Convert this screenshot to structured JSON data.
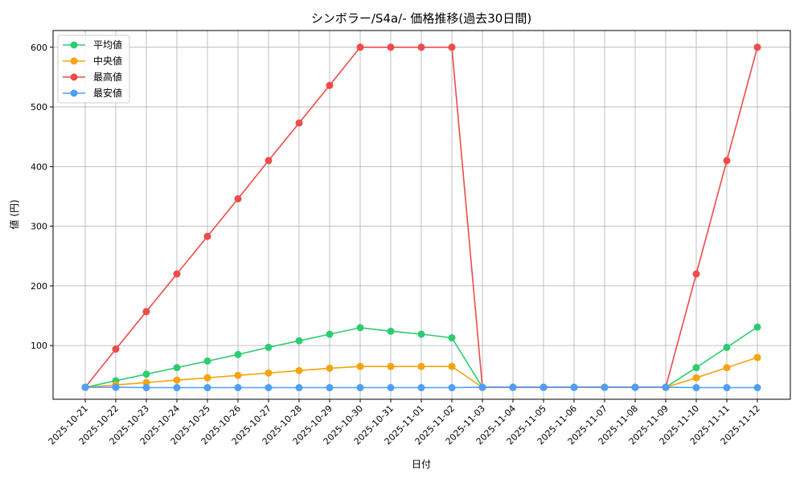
{
  "chart_data": {
    "type": "line",
    "title": "シンボラー/S4a/- 価格推移(過去30日間)",
    "xlabel": "日付",
    "ylabel": "値 (円)",
    "ylim": [
      10,
      628
    ],
    "yticks": [
      100,
      200,
      300,
      400,
      500,
      600
    ],
    "grid": true,
    "legend": "top-left",
    "categories": [
      "2025-10-21",
      "2025-10-22",
      "2025-10-23",
      "2025-10-24",
      "2025-10-25",
      "2025-10-26",
      "2025-10-27",
      "2025-10-28",
      "2025-10-29",
      "2025-10-30",
      "2025-10-31",
      "2025-11-01",
      "2025-11-02",
      "2025-11-03",
      "2025-11-04",
      "2025-11-05",
      "2025-11-06",
      "2025-11-07",
      "2025-11-08",
      "2025-11-09",
      "2025-11-10",
      "2025-11-11",
      "2025-11-12"
    ],
    "series": [
      {
        "name": "平均値",
        "color": "#2ecc71",
        "values": [
          30,
          41,
          52,
          63,
          74,
          85,
          97,
          108,
          119,
          130,
          124,
          119,
          113,
          30,
          30,
          30,
          30,
          30,
          30,
          30,
          63,
          97,
          131
        ]
      },
      {
        "name": "中央値",
        "color": "#f5a30f",
        "values": [
          30,
          34,
          38,
          42,
          46,
          50,
          54,
          58,
          62,
          65,
          65,
          65,
          65,
          30,
          30,
          30,
          30,
          30,
          30,
          30,
          46,
          63,
          80
        ]
      },
      {
        "name": "最高値",
        "color": "#ee4b4b",
        "values": [
          30,
          94,
          157,
          220,
          283,
          346,
          410,
          473,
          536,
          600,
          600,
          600,
          600,
          30,
          30,
          30,
          30,
          30,
          30,
          30,
          220,
          410,
          600
        ]
      },
      {
        "name": "最安値",
        "color": "#4e9ff5",
        "values": [
          30,
          30,
          29.5,
          29.5,
          29.5,
          29.5,
          29.5,
          29.5,
          29.5,
          29.5,
          29.5,
          29.5,
          29.5,
          30,
          30,
          30,
          30,
          30,
          30,
          30,
          29.5,
          29.5,
          29.5
        ]
      }
    ]
  }
}
